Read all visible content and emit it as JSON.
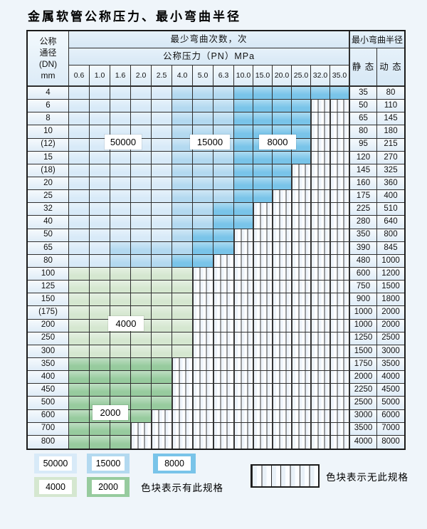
{
  "title": "金属软管公称压力、最小弯曲半径",
  "colors": {
    "blue_50000": "#d8eaf8",
    "blue_15000": "#b3d9f0",
    "blue_8000": "#79c4e9",
    "green_4000": "#d5e7d0",
    "green_2000": "#97cb9e",
    "grid_line": "#2f2f2f",
    "header_bg": "#d7e8f5",
    "page_bg": "#eff5fa"
  },
  "table": {
    "corner_header": {
      "line1": "公称",
      "line2": "通径",
      "line3": "(DN)",
      "line4": "mm"
    },
    "bend_times_header": "最少弯曲次数，次",
    "pressure_header": "公称压力（PN）MPa",
    "radius_header": "最小弯曲半径",
    "static_header": "静 态",
    "dynamic_header": "动 态",
    "pressure_columns": [
      "0.6",
      "1.0",
      "1.6",
      "2.0",
      "2.5",
      "4.0",
      "5.0",
      "6.3",
      "10.0",
      "15.0",
      "20.0",
      "25.0",
      "32.0",
      "35.0"
    ],
    "zone_meaning": {
      "L": "50000",
      "M": "15000",
      "D": "8000",
      "G1": "4000",
      "G2": "2000",
      "X": "no-spec"
    },
    "rows": [
      {
        "dn": "4",
        "zones": [
          "L",
          "L",
          "L",
          "L",
          "L",
          "M",
          "M",
          "M",
          "D",
          "D",
          "D",
          "D",
          "D",
          "D"
        ],
        "static": "35",
        "dynamic": "80"
      },
      {
        "dn": "6",
        "zones": [
          "L",
          "L",
          "L",
          "L",
          "L",
          "M",
          "M",
          "M",
          "D",
          "D",
          "D",
          "D",
          "X",
          "X"
        ],
        "static": "50",
        "dynamic": "110"
      },
      {
        "dn": "8",
        "zones": [
          "L",
          "L",
          "L",
          "L",
          "L",
          "M",
          "M",
          "M",
          "D",
          "D",
          "D",
          "D",
          "X",
          "X"
        ],
        "static": "65",
        "dynamic": "145"
      },
      {
        "dn": "10",
        "zones": [
          "L",
          "L",
          "L",
          "L",
          "L",
          "M",
          "M",
          "M",
          "D",
          "D",
          "D",
          "D",
          "X",
          "X"
        ],
        "static": "80",
        "dynamic": "180"
      },
      {
        "dn": "(12)",
        "zones": [
          "L",
          "L",
          "L",
          "L",
          "L",
          "M",
          "M",
          "M",
          "D",
          "D",
          "D",
          "D",
          "X",
          "X"
        ],
        "static": "95",
        "dynamic": "215"
      },
      {
        "dn": "15",
        "zones": [
          "L",
          "L",
          "L",
          "L",
          "L",
          "M",
          "M",
          "M",
          "D",
          "D",
          "D",
          "D",
          "X",
          "X"
        ],
        "static": "120",
        "dynamic": "270"
      },
      {
        "dn": "(18)",
        "zones": [
          "L",
          "L",
          "L",
          "L",
          "L",
          "M",
          "M",
          "M",
          "D",
          "D",
          "D",
          "X",
          "X",
          "X"
        ],
        "static": "145",
        "dynamic": "325"
      },
      {
        "dn": "20",
        "zones": [
          "L",
          "L",
          "L",
          "L",
          "L",
          "M",
          "M",
          "M",
          "D",
          "D",
          "D",
          "X",
          "X",
          "X"
        ],
        "static": "160",
        "dynamic": "360"
      },
      {
        "dn": "25",
        "zones": [
          "L",
          "L",
          "L",
          "L",
          "L",
          "M",
          "M",
          "M",
          "D",
          "D",
          "X",
          "X",
          "X",
          "X"
        ],
        "static": "175",
        "dynamic": "400"
      },
      {
        "dn": "32",
        "zones": [
          "L",
          "L",
          "L",
          "L",
          "L",
          "M",
          "M",
          "D",
          "D",
          "X",
          "X",
          "X",
          "X",
          "X"
        ],
        "static": "225",
        "dynamic": "510"
      },
      {
        "dn": "40",
        "zones": [
          "L",
          "L",
          "L",
          "L",
          "L",
          "M",
          "M",
          "D",
          "D",
          "X",
          "X",
          "X",
          "X",
          "X"
        ],
        "static": "280",
        "dynamic": "640"
      },
      {
        "dn": "50",
        "zones": [
          "L",
          "L",
          "L",
          "L",
          "L",
          "M",
          "D",
          "D",
          "X",
          "X",
          "X",
          "X",
          "X",
          "X"
        ],
        "static": "350",
        "dynamic": "800"
      },
      {
        "dn": "65",
        "zones": [
          "L",
          "L",
          "M",
          "M",
          "M",
          "M",
          "D",
          "D",
          "X",
          "X",
          "X",
          "X",
          "X",
          "X"
        ],
        "static": "390",
        "dynamic": "845"
      },
      {
        "dn": "80",
        "zones": [
          "L",
          "L",
          "M",
          "M",
          "M",
          "D",
          "D",
          "X",
          "X",
          "X",
          "X",
          "X",
          "X",
          "X"
        ],
        "static": "480",
        "dynamic": "1000"
      },
      {
        "dn": "100",
        "zones": [
          "G1",
          "G1",
          "G1",
          "G1",
          "G1",
          "G1",
          "X",
          "X",
          "X",
          "X",
          "X",
          "X",
          "X",
          "X"
        ],
        "static": "600",
        "dynamic": "1200"
      },
      {
        "dn": "125",
        "zones": [
          "G1",
          "G1",
          "G1",
          "G1",
          "G1",
          "G1",
          "X",
          "X",
          "X",
          "X",
          "X",
          "X",
          "X",
          "X"
        ],
        "static": "750",
        "dynamic": "1500"
      },
      {
        "dn": "150",
        "zones": [
          "G1",
          "G1",
          "G1",
          "G1",
          "G1",
          "G1",
          "X",
          "X",
          "X",
          "X",
          "X",
          "X",
          "X",
          "X"
        ],
        "static": "900",
        "dynamic": "1800"
      },
      {
        "dn": "(175)",
        "zones": [
          "G1",
          "G1",
          "G1",
          "G1",
          "G1",
          "G1",
          "X",
          "X",
          "X",
          "X",
          "X",
          "X",
          "X",
          "X"
        ],
        "static": "1000",
        "dynamic": "2000"
      },
      {
        "dn": "200",
        "zones": [
          "G1",
          "G1",
          "G1",
          "G1",
          "G1",
          "G1",
          "X",
          "X",
          "X",
          "X",
          "X",
          "X",
          "X",
          "X"
        ],
        "static": "1000",
        "dynamic": "2000"
      },
      {
        "dn": "250",
        "zones": [
          "G1",
          "G1",
          "G1",
          "G1",
          "G1",
          "G1",
          "X",
          "X",
          "X",
          "X",
          "X",
          "X",
          "X",
          "X"
        ],
        "static": "1250",
        "dynamic": "2500"
      },
      {
        "dn": "300",
        "zones": [
          "G1",
          "G1",
          "G1",
          "G1",
          "G1",
          "G1",
          "X",
          "X",
          "X",
          "X",
          "X",
          "X",
          "X",
          "X"
        ],
        "static": "1500",
        "dynamic": "3000"
      },
      {
        "dn": "350",
        "zones": [
          "G2",
          "G2",
          "G2",
          "G2",
          "G2",
          "X",
          "X",
          "X",
          "X",
          "X",
          "X",
          "X",
          "X",
          "X"
        ],
        "static": "1750",
        "dynamic": "3500"
      },
      {
        "dn": "400",
        "zones": [
          "G2",
          "G2",
          "G2",
          "G2",
          "G2",
          "X",
          "X",
          "X",
          "X",
          "X",
          "X",
          "X",
          "X",
          "X"
        ],
        "static": "2000",
        "dynamic": "4000"
      },
      {
        "dn": "450",
        "zones": [
          "G2",
          "G2",
          "G2",
          "G2",
          "G2",
          "X",
          "X",
          "X",
          "X",
          "X",
          "X",
          "X",
          "X",
          "X"
        ],
        "static": "2250",
        "dynamic": "4500"
      },
      {
        "dn": "500",
        "zones": [
          "G2",
          "G2",
          "G2",
          "G2",
          "G2",
          "X",
          "X",
          "X",
          "X",
          "X",
          "X",
          "X",
          "X",
          "X"
        ],
        "static": "2500",
        "dynamic": "5000"
      },
      {
        "dn": "600",
        "zones": [
          "G2",
          "G2",
          "G2",
          "G2",
          "X",
          "X",
          "X",
          "X",
          "X",
          "X",
          "X",
          "X",
          "X",
          "X"
        ],
        "static": "3000",
        "dynamic": "6000"
      },
      {
        "dn": "700",
        "zones": [
          "G2",
          "G2",
          "G2",
          "X",
          "X",
          "X",
          "X",
          "X",
          "X",
          "X",
          "X",
          "X",
          "X",
          "X"
        ],
        "static": "3500",
        "dynamic": "7000"
      },
      {
        "dn": "800",
        "zones": [
          "G2",
          "G2",
          "G2",
          "X",
          "X",
          "X",
          "X",
          "X",
          "X",
          "X",
          "X",
          "X",
          "X",
          "X"
        ],
        "static": "4000",
        "dynamic": "8000"
      }
    ]
  },
  "zone_labels": {
    "b50000": "50000",
    "b15000": "15000",
    "b8000": "8000",
    "g4000": "4000",
    "g2000": "2000"
  },
  "legend": {
    "swatch_50000": "50000",
    "swatch_15000": "15000",
    "swatch_8000": "8000",
    "swatch_4000": "4000",
    "swatch_2000": "2000",
    "has_spec_caption": "色块表示有此规格",
    "no_spec_caption": "色块表示无此规格"
  }
}
